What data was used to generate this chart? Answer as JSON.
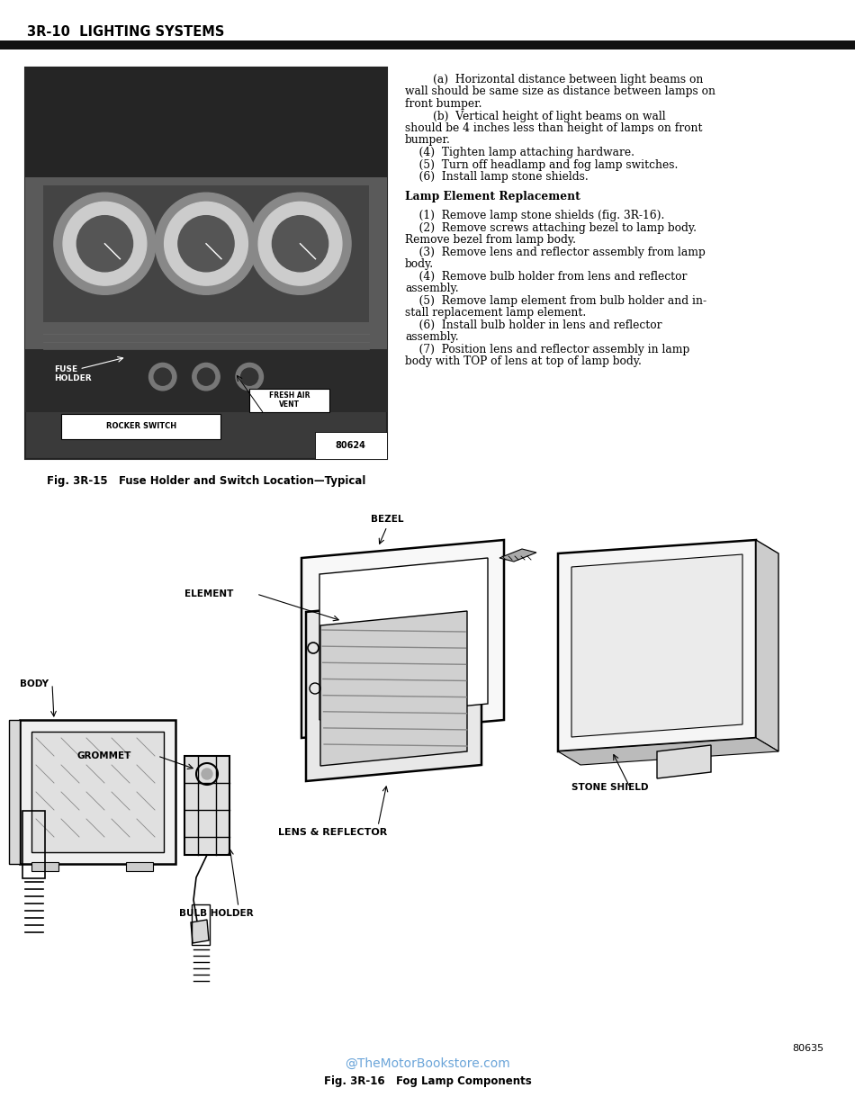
{
  "page_bg": "#ffffff",
  "header_text": "3R-10  LIGHTING SYSTEMS",
  "header_fontsize": 10.5,
  "divider_color": "#111111",
  "right_col_lines": [
    {
      "text": "        (a)  Horizontal distance between light beams on",
      "indent": false
    },
    {
      "text": "wall should be same size as distance between lamps on",
      "indent": false
    },
    {
      "text": "front bumper.",
      "indent": false
    },
    {
      "text": "        (b)  Vertical height of light beams on wall",
      "indent": false
    },
    {
      "text": "should be 4 inches less than height of lamps on front",
      "indent": false
    },
    {
      "text": "bumper.",
      "indent": false
    },
    {
      "text": "    (4)  Tighten lamp attaching hardware.",
      "indent": false
    },
    {
      "text": "    (5)  Turn off headlamp and fog lamp switches.",
      "indent": false
    },
    {
      "text": "    (6)  Install lamp stone shields.",
      "indent": false
    },
    {
      "text": "",
      "indent": false
    },
    {
      "text": "Lamp Element Replacement",
      "indent": false,
      "bold": true
    },
    {
      "text": "",
      "indent": false
    },
    {
      "text": "    (1)  Remove lamp stone shields (fig. 3R-16).",
      "indent": false
    },
    {
      "text": "    (2)  Remove screws attaching bezel to lamp body.",
      "indent": false
    },
    {
      "text": "Remove bezel from lamp body.",
      "indent": false
    },
    {
      "text": "    (3)  Remove lens and reflector assembly from lamp",
      "indent": false
    },
    {
      "text": "body.",
      "indent": false
    },
    {
      "text": "    (4)  Remove bulb holder from lens and reflector",
      "indent": false
    },
    {
      "text": "assembly.",
      "indent": false
    },
    {
      "text": "    (5)  Remove lamp element from bulb holder and in-",
      "indent": false
    },
    {
      "text": "stall replacement lamp element.",
      "indent": false
    },
    {
      "text": "    (6)  Install bulb holder in lens and reflector",
      "indent": false
    },
    {
      "text": "assembly.",
      "indent": false
    },
    {
      "text": "    (7)  Position lens and reflector assembly in lamp",
      "indent": false
    },
    {
      "text": "body with TOP of lens at top of lamp body.",
      "indent": false
    }
  ],
  "fig15_caption": "Fig. 3R-15   Fuse Holder and Switch Location—Typical",
  "fig16_caption": "Fig. 3R-16   Fog Lamp Components",
  "watermark": "@TheMotorBookstore.com",
  "watermark_color": "#5b9bd5",
  "fig_number_80624": "80624",
  "fig_number_80635": "80635",
  "label_fontsize": 7.5,
  "body_text_fontsize": 8.8,
  "caption_fontsize": 8.5
}
